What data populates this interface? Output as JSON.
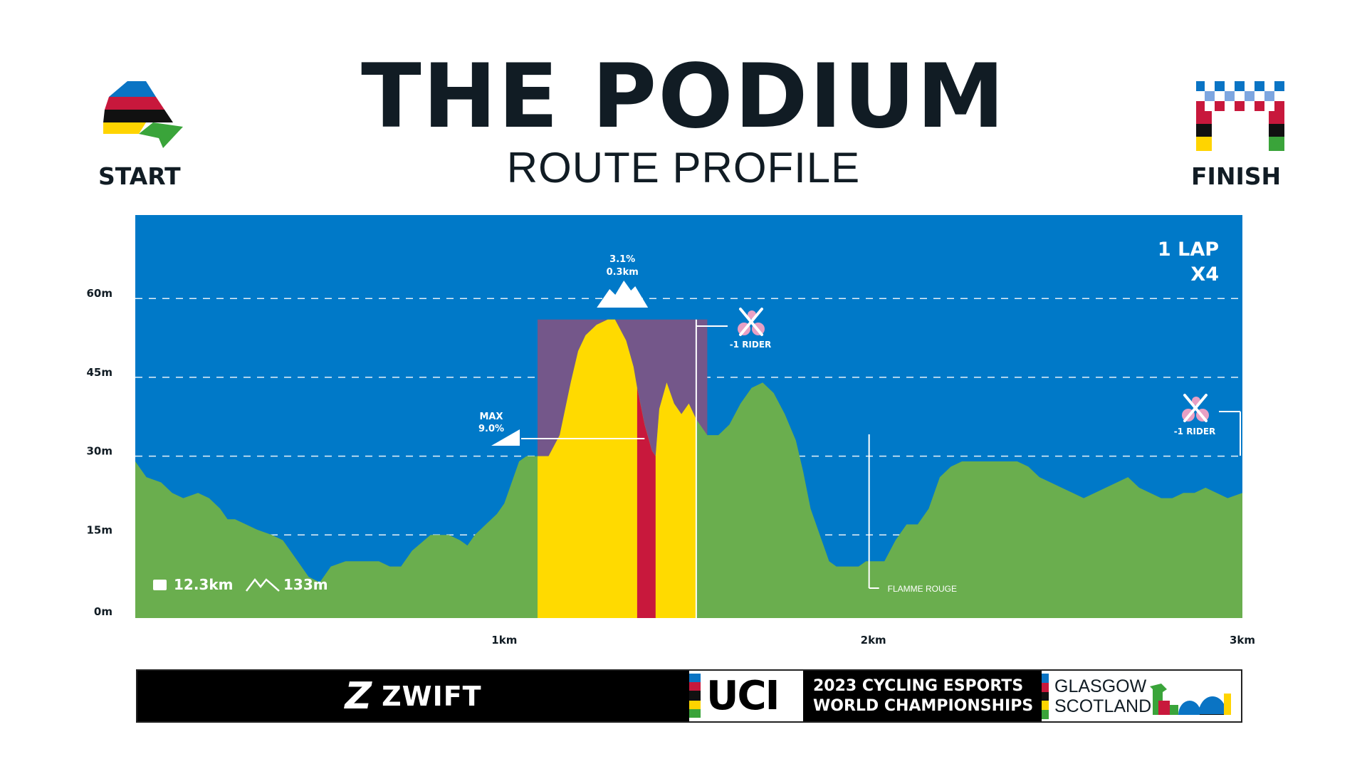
{
  "header": {
    "title": "THE PODIUM",
    "subtitle": "ROUTE PROFILE",
    "start_label": "START",
    "finish_label": "FINISH"
  },
  "lap_info": {
    "line1": "1 LAP",
    "line2": "X4"
  },
  "stats": {
    "distance": "12.3km",
    "elevation": "133m",
    "distance_icon": "odometer-icon",
    "elevation_icon": "mountains-icon"
  },
  "climb": {
    "kom_grade": "3.1%",
    "kom_length": "0.3km",
    "kom_icon": "mountain-icon",
    "max_label": "MAX",
    "max_grade": "9.0%",
    "max_icon": "gradient-wedge-icon"
  },
  "eliminations": [
    {
      "label": "-1 RIDER",
      "at_km": 1.55,
      "icon": "rider-eliminated-icon"
    },
    {
      "label": "-1 RIDER",
      "at_km": 3.0,
      "icon": "rider-eliminated-icon"
    }
  ],
  "flamme_rouge": {
    "label": "FLAMME ROUGE",
    "at_km": 2.0
  },
  "colors": {
    "sky": "#0079C8",
    "terrain": "#6AAE4E",
    "climb_zone": "#74578A",
    "climb_fill": "#FFDA00",
    "climb_max": "#C8183C",
    "title": "#111C24"
  },
  "banner": {
    "sponsor": "ZWIFT",
    "sponsor_icon": "zwift-z-logo",
    "federation": "UCI",
    "event_line1": "2023 CYCLING ESPORTS",
    "event_line2": "WORLD CHAMPIONSHIPS",
    "host_line1": "GLASGOW",
    "host_line2": "SCOTLAND"
  },
  "chart_data": {
    "type": "area",
    "title": "",
    "xlabel": "",
    "ylabel": "",
    "xlim": [
      0,
      3.0
    ],
    "ylim": [
      0,
      75
    ],
    "grid": "dashed horizontal lines",
    "x_ticks": [
      {
        "value": 1,
        "label": "1km"
      },
      {
        "value": 2,
        "label": "2km"
      },
      {
        "value": 3,
        "label": "3km"
      }
    ],
    "y_ticks": [
      {
        "value": 0,
        "label": "0m"
      },
      {
        "value": 15,
        "label": "15m"
      },
      {
        "value": 30,
        "label": "30m"
      },
      {
        "value": 45,
        "label": "45m"
      },
      {
        "value": 60,
        "label": "60m"
      }
    ],
    "climb_segment_km": [
      1.09,
      1.52
    ],
    "climb_max_segment_km": [
      1.36,
      1.41
    ],
    "series": [
      {
        "x": [
          0,
          0.03,
          0.07,
          0.1,
          0.13,
          0.17,
          0.2,
          0.23,
          0.25,
          0.27,
          0.3,
          0.33,
          0.37,
          0.4,
          0.43,
          0.47,
          0.5,
          0.53,
          0.57,
          0.6,
          0.62,
          0.64,
          0.66,
          0.69,
          0.72,
          0.75,
          0.8,
          0.85,
          0.88,
          0.9,
          0.92,
          0.95,
          0.98,
          1.0,
          1.02,
          1.04,
          1.06,
          1.09,
          1.12,
          1.15,
          1.18,
          1.2,
          1.22,
          1.25,
          1.28,
          1.3,
          1.33,
          1.35,
          1.36,
          1.38,
          1.4,
          1.41,
          1.42,
          1.44,
          1.46,
          1.48,
          1.5,
          1.52,
          1.55,
          1.58,
          1.61,
          1.64,
          1.67,
          1.7,
          1.73,
          1.76,
          1.79,
          1.81,
          1.83,
          1.86,
          1.88,
          1.9,
          1.92,
          1.94,
          1.96,
          1.98,
          2.0,
          2.03,
          2.06,
          2.09,
          2.12,
          2.15,
          2.18,
          2.21,
          2.24,
          2.27,
          2.3,
          2.33,
          2.36,
          2.39,
          2.42,
          2.45,
          2.48,
          2.51,
          2.54,
          2.57,
          2.6,
          2.63,
          2.66,
          2.69,
          2.72,
          2.75,
          2.78,
          2.81,
          2.84,
          2.87,
          2.9,
          2.93,
          2.96,
          3.0
        ],
        "values": [
          29,
          26,
          25,
          23,
          22,
          23,
          22,
          20,
          18,
          18,
          17,
          16,
          15,
          14,
          11,
          7,
          6,
          9,
          10,
          10,
          10,
          10,
          10,
          9,
          9,
          12,
          15,
          15,
          14,
          13,
          15,
          17,
          19,
          21,
          25,
          29,
          30,
          30,
          30,
          34,
          44,
          50,
          53,
          55,
          56,
          56,
          52,
          47,
          43,
          36,
          31,
          30,
          39,
          44,
          40,
          38,
          40,
          37,
          34,
          34,
          36,
          40,
          43,
          44,
          42,
          38,
          33,
          27,
          20,
          14,
          10,
          9,
          9,
          9,
          9,
          10,
          10,
          10,
          14,
          17,
          17,
          20,
          26,
          28,
          29,
          29,
          29,
          29,
          29,
          29,
          28,
          26,
          25,
          24,
          23,
          22,
          23,
          24,
          25,
          26,
          24,
          23,
          22,
          22,
          23,
          23,
          24,
          23,
          22,
          23
        ]
      }
    ]
  }
}
